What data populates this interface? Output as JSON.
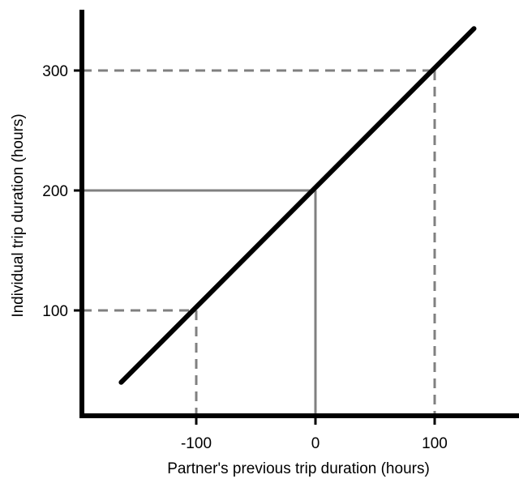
{
  "chart_data": {
    "type": "line",
    "xlabel": "Partner's previous trip duration (hours)",
    "ylabel": "Individual trip duration (hours)",
    "xlim": [
      -200,
      170
    ],
    "ylim": [
      0,
      350
    ],
    "x_ticks": [
      -100,
      0,
      100
    ],
    "y_ticks": [
      100,
      200,
      300
    ],
    "x_tick_labels": [
      "-100",
      "0",
      "100"
    ],
    "y_tick_labels": [
      "100",
      "200",
      "300"
    ],
    "series": [
      {
        "x": [
          -163,
          133
        ],
        "y": [
          40,
          335
        ]
      }
    ],
    "reference_lines": [
      {
        "x": -100,
        "y": 100,
        "style": "dashed"
      },
      {
        "x": 0,
        "y": 200,
        "style": "solid"
      },
      {
        "x": 100,
        "y": 300,
        "style": "dashed"
      }
    ],
    "grid": false,
    "colors": {
      "line": "#000000",
      "reference": "#808080",
      "axis": "#000000"
    }
  }
}
